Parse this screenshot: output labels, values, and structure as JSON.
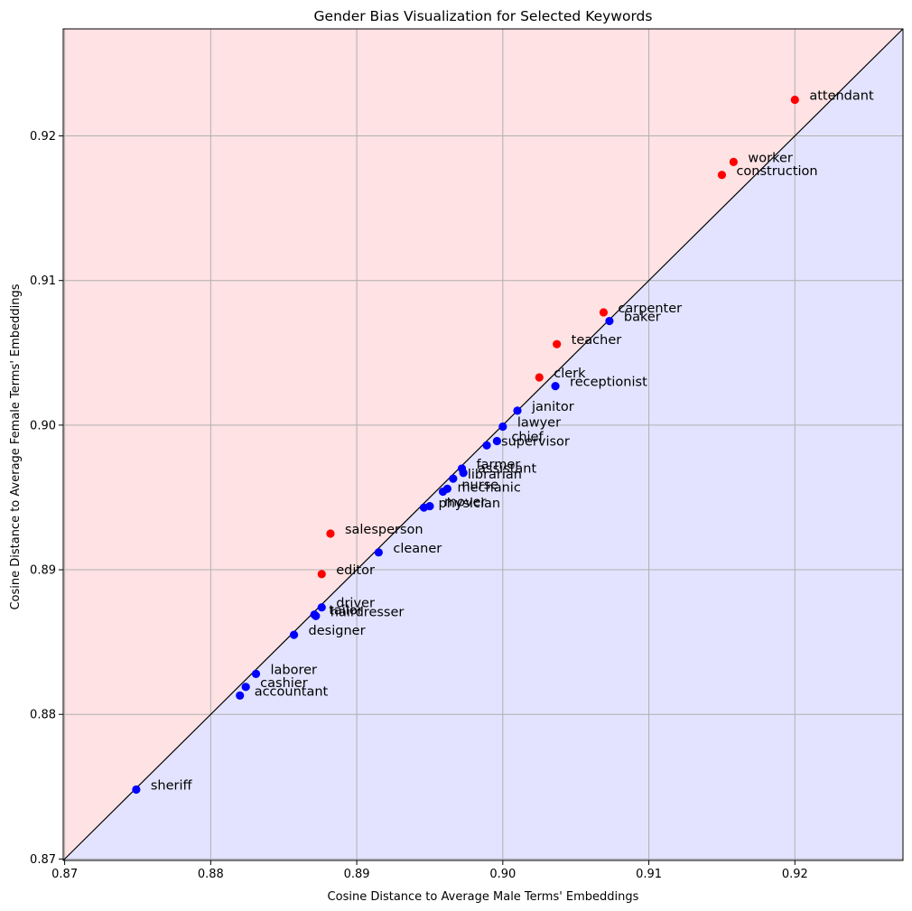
{
  "chart_data": {
    "type": "scatter",
    "title": "Gender Bias Visualization for Selected Keywords",
    "xlabel": "Cosine Distance to Average Male Terms' Embeddings",
    "ylabel": "Cosine Distance to Average Female Terms' Embeddings",
    "xlim": [
      0.8699,
      0.9274
    ],
    "ylim": [
      0.8699,
      0.9274
    ],
    "xticks": [
      0.87,
      0.88,
      0.89,
      0.9,
      0.91,
      0.92
    ],
    "yticks": [
      0.87,
      0.88,
      0.89,
      0.9,
      0.91,
      0.92
    ],
    "xtick_labels": [
      "0.87",
      "0.88",
      "0.89",
      "0.90",
      "0.91",
      "0.92"
    ],
    "ytick_labels": [
      "0.87",
      "0.88",
      "0.89",
      "0.90",
      "0.91",
      "0.92"
    ],
    "grid": true,
    "diagonal_line": true,
    "colors": {
      "female_region": "#ffe2e3",
      "male_region": "#e3e3ff",
      "female_biased": "#ff0000",
      "male_biased": "#0000ff",
      "grid": "#b0b0b0",
      "diagonal": "#000000"
    },
    "points": [
      {
        "label": "attendant",
        "x": 0.92,
        "y": 0.9225,
        "color": "red"
      },
      {
        "label": "worker",
        "x": 0.9158,
        "y": 0.9182,
        "color": "red"
      },
      {
        "label": "construction",
        "x": 0.915,
        "y": 0.9173,
        "color": "red"
      },
      {
        "label": "carpenter",
        "x": 0.9069,
        "y": 0.9078,
        "color": "red"
      },
      {
        "label": "baker",
        "x": 0.9073,
        "y": 0.9072,
        "color": "blue"
      },
      {
        "label": "teacher",
        "x": 0.9037,
        "y": 0.9056,
        "color": "red"
      },
      {
        "label": "clerk",
        "x": 0.9025,
        "y": 0.9033,
        "color": "red"
      },
      {
        "label": "receptionist",
        "x": 0.9036,
        "y": 0.9027,
        "color": "blue"
      },
      {
        "label": "janitor",
        "x": 0.901,
        "y": 0.901,
        "color": "blue"
      },
      {
        "label": "lawyer",
        "x": 0.9,
        "y": 0.8999,
        "color": "blue"
      },
      {
        "label": "chief",
        "x": 0.8996,
        "y": 0.8989,
        "color": "blue"
      },
      {
        "label": "supervisor",
        "x": 0.8989,
        "y": 0.8986,
        "color": "blue"
      },
      {
        "label": "farmer",
        "x": 0.8972,
        "y": 0.897,
        "color": "blue"
      },
      {
        "label": "assistant",
        "x": 0.8973,
        "y": 0.8967,
        "color": "blue"
      },
      {
        "label": "librarian",
        "x": 0.8966,
        "y": 0.8963,
        "color": "blue"
      },
      {
        "label": "nurse",
        "x": 0.8962,
        "y": 0.8956,
        "color": "blue"
      },
      {
        "label": "mechanic",
        "x": 0.8959,
        "y": 0.8954,
        "color": "blue"
      },
      {
        "label": "mover",
        "x": 0.895,
        "y": 0.8944,
        "color": "blue"
      },
      {
        "label": "physician",
        "x": 0.8946,
        "y": 0.8943,
        "color": "blue"
      },
      {
        "label": "salesperson",
        "x": 0.8882,
        "y": 0.8925,
        "color": "red"
      },
      {
        "label": "cleaner",
        "x": 0.8915,
        "y": 0.8912,
        "color": "blue"
      },
      {
        "label": "editor",
        "x": 0.8876,
        "y": 0.8897,
        "color": "red"
      },
      {
        "label": "driver",
        "x": 0.8876,
        "y": 0.8874,
        "color": "blue"
      },
      {
        "label": "tailor",
        "x": 0.8871,
        "y": 0.8869,
        "color": "blue"
      },
      {
        "label": "hairdresser",
        "x": 0.8872,
        "y": 0.8868,
        "color": "blue"
      },
      {
        "label": "designer",
        "x": 0.8857,
        "y": 0.8855,
        "color": "blue"
      },
      {
        "label": "laborer",
        "x": 0.8831,
        "y": 0.8828,
        "color": "blue"
      },
      {
        "label": "cashier",
        "x": 0.8824,
        "y": 0.8819,
        "color": "blue"
      },
      {
        "label": "accountant",
        "x": 0.882,
        "y": 0.8813,
        "color": "blue"
      },
      {
        "label": "sheriff",
        "x": 0.8749,
        "y": 0.8748,
        "color": "blue"
      }
    ]
  }
}
